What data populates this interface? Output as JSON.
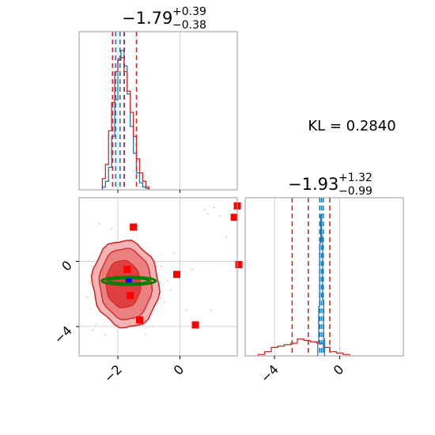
{
  "chart_data": {
    "type": "corner",
    "annotation": "KL = 0.2840",
    "params": [
      {
        "title": {
          "median": "−1.79",
          "plus": "+0.39",
          "minus": "−0.38"
        },
        "range": [
          -3.25,
          1.85
        ],
        "ticks": [
          {
            "value": -2,
            "label": "−2"
          },
          {
            "value": 0,
            "label": "0"
          }
        ]
      },
      {
        "title": {
          "median": "−1.93",
          "plus": "+1.32",
          "minus": "−0.99"
        },
        "range": [
          -5.8,
          3.9
        ],
        "ticks": [
          {
            "value": -4,
            "label": "−4"
          },
          {
            "value": 0,
            "label": "0"
          }
        ]
      }
    ],
    "colors": {
      "red": "#d62728",
      "blue": "#1f77b4",
      "truth": "#ff0000",
      "ellipse": "#008000",
      "grid": "#c8c8c8",
      "fill_outer": "#f4b4b4",
      "fill_mid": "#ea8080",
      "fill_inner": "#de4040",
      "scatter_points": "#f4c8dc"
    },
    "marginal_0": {
      "x_hist": [
        -2.45,
        -2.35,
        -2.25,
        -2.15,
        -2.05,
        -1.95,
        -1.85,
        -1.75,
        -1.65,
        -1.55,
        -1.45,
        -1.35,
        -1.25,
        -1.15,
        -1.05
      ],
      "red_hist": [
        0.08,
        0.18,
        0.42,
        0.62,
        0.84,
        0.93,
        0.94,
        0.84,
        0.7,
        0.55,
        0.38,
        0.22,
        0.12,
        0.06,
        0.02
      ],
      "blue_hist": [
        0.02,
        0.06,
        0.16,
        0.38,
        0.64,
        0.92,
        0.99,
        0.88,
        0.68,
        0.45,
        0.26,
        0.12,
        0.05,
        0.02,
        0.01
      ],
      "red_quantiles": [
        -2.17,
        -1.79,
        -1.4
      ],
      "blue_quantiles": [
        -2.07,
        -1.93,
        -1.8
      ]
    },
    "marginal_1": {
      "red_hist_x": [
        -4.8,
        -4.4,
        -4.0,
        -3.6,
        -3.2,
        -2.8,
        -2.4,
        -2.0,
        -1.6,
        -1.2,
        -0.8,
        -0.4,
        0.0,
        0.4
      ],
      "red_hist": [
        0.01,
        0.03,
        0.06,
        0.07,
        0.08,
        0.09,
        0.12,
        0.11,
        0.1,
        0.09,
        0.06,
        0.03,
        0.02,
        0.01
      ],
      "blue_hist_x": [
        -1.32,
        -1.26,
        -1.2,
        -1.14,
        -1.08,
        -1.02,
        -0.96
      ],
      "blue_hist": [
        0.1,
        0.35,
        0.8,
        1.0,
        0.85,
        0.4,
        0.12
      ],
      "red_quantiles": [
        -2.92,
        -1.93,
        -0.61
      ],
      "blue_quantiles": [
        -1.23,
        -1.12,
        -1.01
      ]
    },
    "joint": {
      "truth_points": [
        [
          1.85,
          3.4
        ],
        [
          1.75,
          2.7
        ],
        [
          -1.5,
          2.1
        ],
        [
          -1.7,
          -0.5
        ],
        [
          -0.1,
          -0.8
        ],
        [
          1.9,
          -0.2
        ],
        [
          -1.6,
          -2.1
        ],
        [
          -1.3,
          -3.6
        ],
        [
          0.5,
          -3.9
        ]
      ],
      "center": [
        -1.75,
        -1.2
      ],
      "scatter_points": [
        [
          -2.6,
          2.3
        ],
        [
          -2.2,
          2.0
        ],
        [
          0.8,
          3.2
        ],
        [
          1.1,
          3.3
        ],
        [
          1.3,
          2.8
        ],
        [
          0.9,
          2.9
        ],
        [
          -1.0,
          0.1
        ],
        [
          -0.6,
          -0.3
        ],
        [
          -0.4,
          -1.2
        ],
        [
          -0.3,
          -1.8
        ],
        [
          -0.5,
          -2.5
        ],
        [
          0.2,
          -3.0
        ],
        [
          -2.7,
          -3.9
        ],
        [
          -2.8,
          -4.2
        ],
        [
          -2.4,
          -4.5
        ],
        [
          -2.9,
          -1.3
        ],
        [
          -3.0,
          -2.2
        ],
        [
          -0.9,
          -4.0
        ],
        [
          -1.1,
          -4.5
        ],
        [
          1.0,
          -3.0
        ],
        [
          -2.0,
          0.9
        ],
        [
          -1.4,
          1.0
        ],
        [
          1.5,
          1.5
        ],
        [
          -0.2,
          0.5
        ],
        [
          0.4,
          -0.5
        ]
      ]
    }
  }
}
